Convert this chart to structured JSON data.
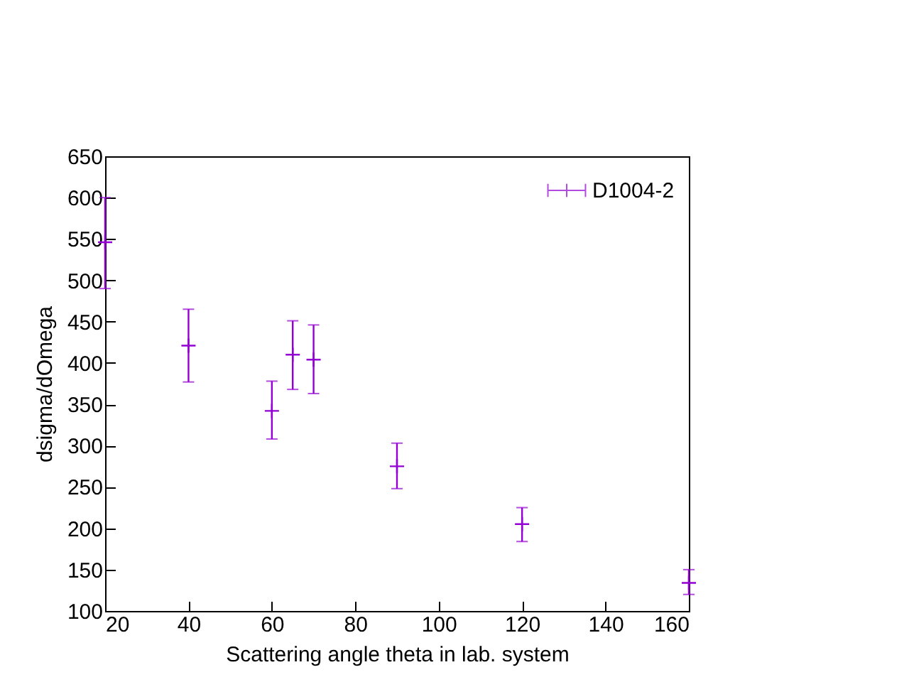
{
  "chart_data": {
    "type": "scatter",
    "xlabel": "Scattering angle theta in lab. system",
    "ylabel": "dsigma/dOmega",
    "x": [
      20,
      40,
      60,
      65,
      70,
      90,
      120,
      160
    ],
    "series": [
      {
        "name": "D1004-2",
        "color": "#9400d3",
        "values": [
          546,
          421,
          342,
          410,
          404,
          275,
          205,
          134
        ],
        "errors": [
          [
            490,
            600
          ],
          [
            377,
            465
          ],
          [
            308,
            378
          ],
          [
            368,
            451
          ],
          [
            363,
            446
          ],
          [
            248,
            303
          ],
          [
            184,
            225
          ],
          [
            120,
            150
          ]
        ]
      }
    ],
    "xlim": [
      20,
      160
    ],
    "xticks": [
      20,
      40,
      60,
      80,
      100,
      120,
      140,
      160
    ],
    "ylim": [
      100,
      650
    ],
    "yticks": [
      100,
      150,
      200,
      250,
      300,
      350,
      400,
      450,
      500,
      550,
      600,
      650
    ],
    "legend": "top right",
    "grid": false,
    "marker": "cross"
  }
}
